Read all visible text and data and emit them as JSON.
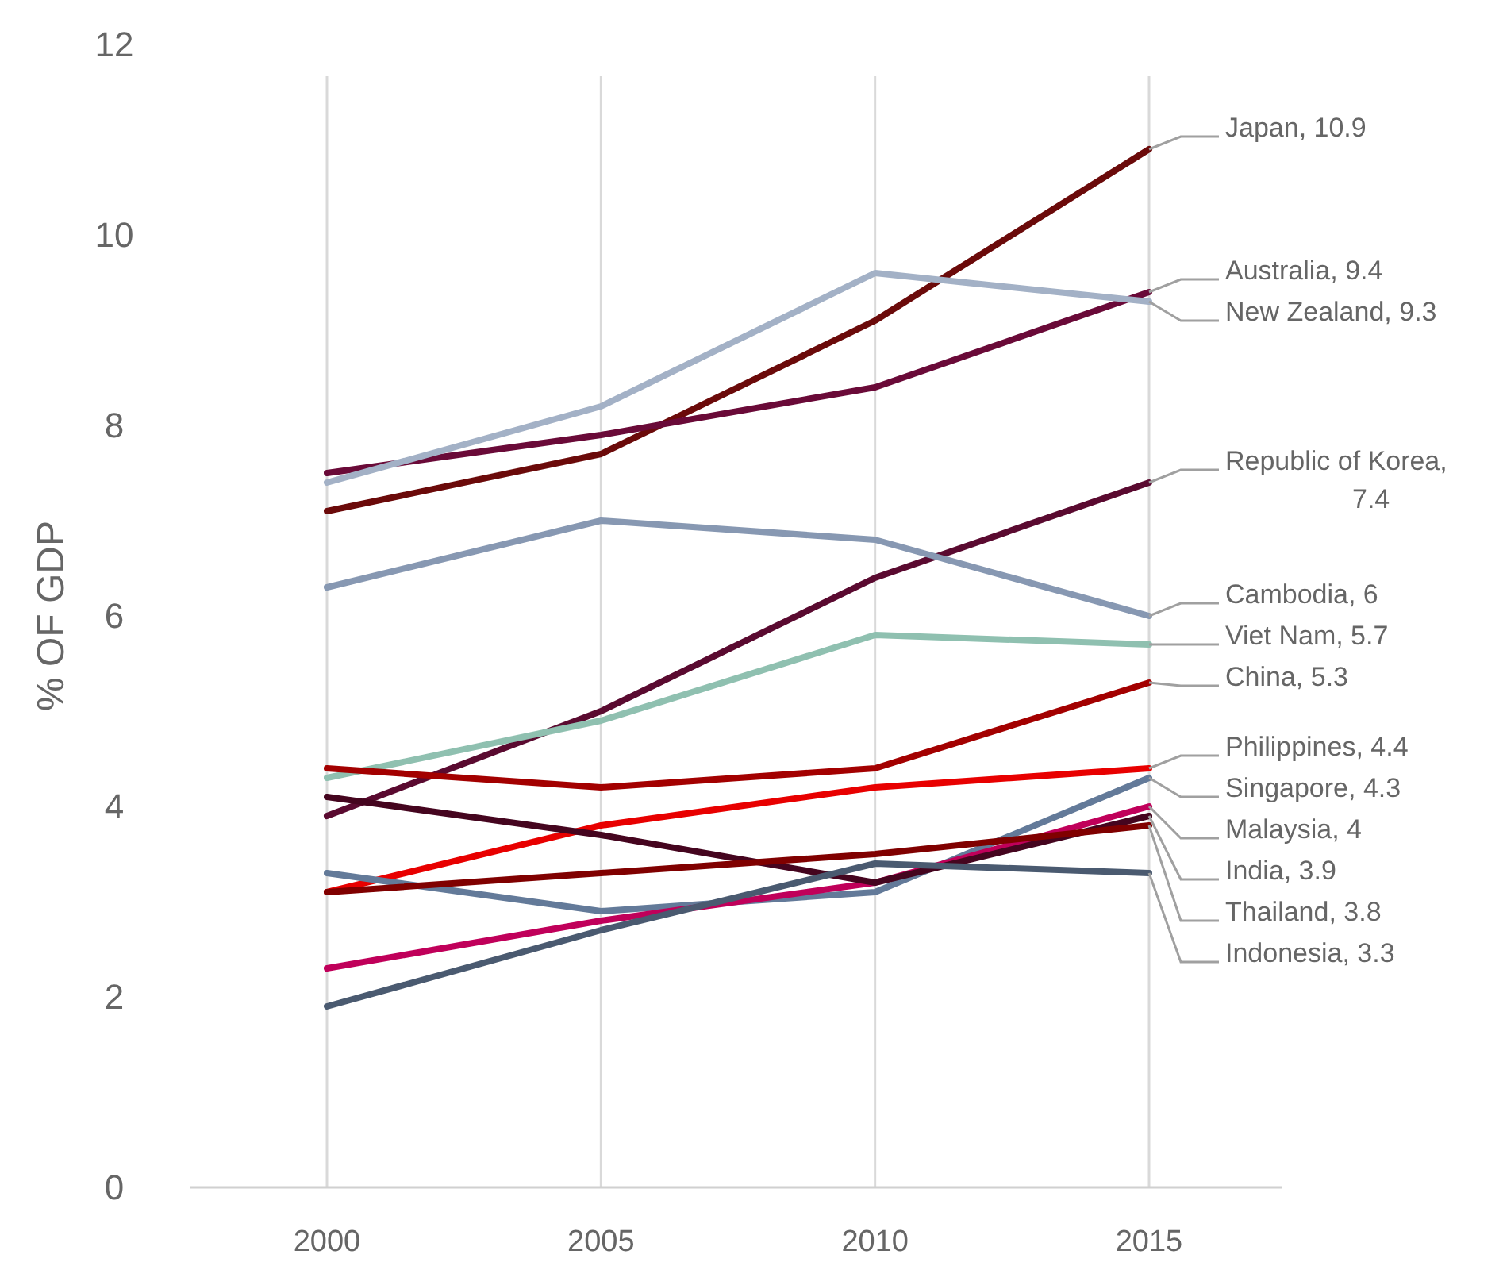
{
  "chart_data": {
    "type": "line",
    "ylabel": "% OF GDP",
    "categories": [
      "2000",
      "2005",
      "2010",
      "2015"
    ],
    "ylim": [
      0,
      12
    ],
    "yticks": [
      0,
      2,
      4,
      6,
      8,
      10,
      12
    ],
    "grid": "x",
    "series": [
      {
        "name": "Japan, 10.9",
        "color": "#6b0a0a",
        "values": [
          7.1,
          7.7,
          9.1,
          10.9
        ]
      },
      {
        "name": "Australia, 9.4",
        "color": "#6a0a38",
        "values": [
          7.5,
          7.9,
          8.4,
          9.4
        ]
      },
      {
        "name": "New Zealand, 9.3",
        "color": "#a3b1c6",
        "values": [
          7.4,
          8.2,
          9.6,
          9.3
        ]
      },
      {
        "name": "Republic of Korea, 7.4",
        "color": "#5a0a30",
        "values": [
          3.9,
          5.0,
          6.4,
          7.4
        ]
      },
      {
        "name": "Cambodia, 6",
        "color": "#8798b2",
        "values": [
          6.3,
          7.0,
          6.8,
          6
        ]
      },
      {
        "name": "Viet Nam, 5.7",
        "color": "#8fc0b0",
        "values": [
          4.3,
          4.9,
          5.8,
          5.7
        ]
      },
      {
        "name": "China, 5.3",
        "color": "#a30000",
        "values": [
          4.4,
          4.2,
          4.4,
          5.3
        ]
      },
      {
        "name": "Philippines, 4.4",
        "color": "#e80000",
        "values": [
          3.1,
          3.8,
          4.2,
          4.4
        ]
      },
      {
        "name": "Singapore, 4.3",
        "color": "#637a99",
        "values": [
          3.3,
          2.9,
          3.1,
          4.3
        ]
      },
      {
        "name": "Malaysia, 4",
        "color": "#c0005a",
        "values": [
          2.3,
          2.8,
          3.2,
          4
        ]
      },
      {
        "name": "India, 3.9",
        "color": "#45051f",
        "values": [
          4.1,
          3.7,
          3.2,
          3.9
        ]
      },
      {
        "name": "Thailand, 3.8",
        "color": "#800000",
        "values": [
          3.1,
          3.3,
          3.5,
          3.8
        ]
      },
      {
        "name": "Indonesia, 3.3",
        "color": "#4a5a70",
        "values": [
          1.9,
          2.7,
          3.4,
          3.3
        ]
      }
    ]
  }
}
